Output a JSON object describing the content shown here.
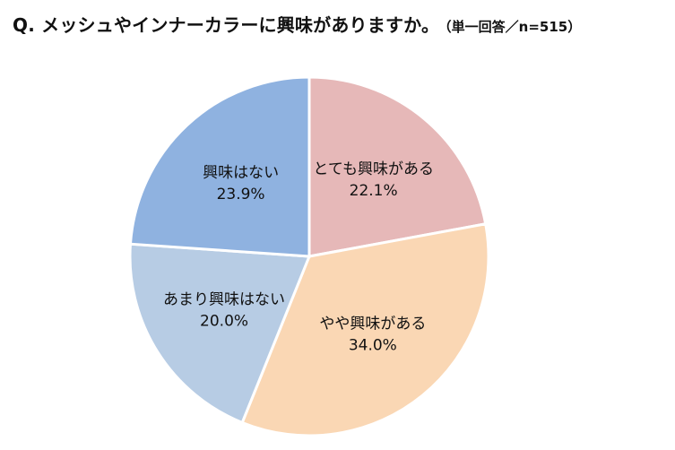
{
  "title": "Q. メッシュやインナーカラーに興味がありますか。",
  "subtitle": "（単一回答／n=515）",
  "chart_data": {
    "type": "pie",
    "title": "Q. メッシュやインナーカラーに興味がありますか。",
    "subtitle": "（単一回答／n=515）",
    "start": "12 o'clock",
    "direction": "clockwise",
    "slices": [
      {
        "label": "とても興味がある",
        "value": 22.1,
        "value_label": "22.1%",
        "color": "#E6B8B8"
      },
      {
        "label": "やや興味がある",
        "value": 34.0,
        "value_label": "34.0%",
        "color": "#FAD7B4"
      },
      {
        "label": "あまり興味はない",
        "value": 20.0,
        "value_label": "20.0%",
        "color": "#B7CCE4"
      },
      {
        "label": "興味はない",
        "value": 23.9,
        "value_label": "23.9%",
        "color": "#8FB2E0"
      }
    ]
  }
}
